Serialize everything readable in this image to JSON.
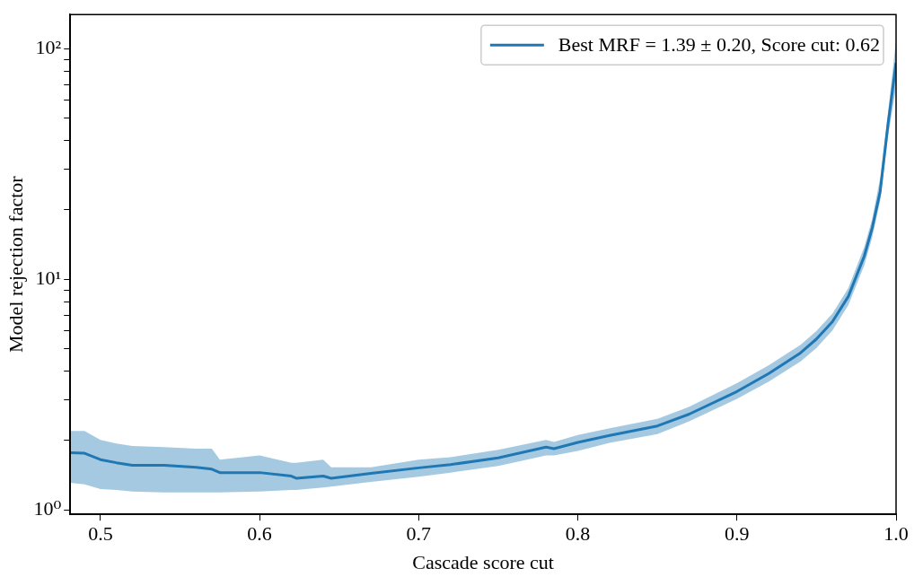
{
  "chart_data": {
    "type": "line",
    "xlabel": "Cascade score cut",
    "ylabel": "Model rejection factor",
    "log": "y",
    "grid": false,
    "legend": "top right",
    "marker": "none",
    "line_style": "solid",
    "xlim": [
      0.481,
      1.0
    ],
    "xticks": [
      0.5,
      0.6,
      0.7,
      0.8,
      0.9,
      {
        "value": 1,
        "label": "1.0"
      }
    ],
    "ylim": [
      0.955,
      141
    ],
    "yticks": [
      {
        "value": 1,
        "label": "10⁰"
      },
      {
        "value": 2,
        "label": null
      },
      {
        "value": 3,
        "label": null
      },
      {
        "value": 4,
        "label": null
      },
      {
        "value": 5,
        "label": null
      },
      {
        "value": 6,
        "label": null
      },
      {
        "value": 7,
        "label": null
      },
      {
        "value": 8,
        "label": null
      },
      {
        "value": 9,
        "label": null
      },
      {
        "value": 10,
        "label": "10¹"
      },
      {
        "value": 20,
        "label": null
      },
      {
        "value": 30,
        "label": null
      },
      {
        "value": 40,
        "label": null
      },
      {
        "value": 50,
        "label": null
      },
      {
        "value": 60,
        "label": null
      },
      {
        "value": 70,
        "label": null
      },
      {
        "value": 80,
        "label": null
      },
      {
        "value": 90,
        "label": null
      },
      {
        "value": 100,
        "label": "10²"
      }
    ],
    "x": [
      0.481,
      0.49,
      0.5,
      0.51,
      0.52,
      0.54,
      0.56,
      0.57,
      0.575,
      0.6,
      0.62,
      0.623,
      0.64,
      0.645,
      0.67,
      0.7,
      0.72,
      0.75,
      0.78,
      0.785,
      0.8,
      0.82,
      0.85,
      0.87,
      0.9,
      0.92,
      0.94,
      0.95,
      0.96,
      0.97,
      0.98,
      0.985,
      0.99,
      0.995,
      1.0
    ],
    "series": [
      {
        "name": "Best MRF = 1.39 ± 0.20, Score cut: 0.62",
        "color": "#1f77b4",
        "values": [
          1.77,
          1.76,
          1.65,
          1.6,
          1.56,
          1.56,
          1.53,
          1.5,
          1.45,
          1.45,
          1.4,
          1.37,
          1.4,
          1.37,
          1.44,
          1.52,
          1.57,
          1.68,
          1.87,
          1.84,
          1.96,
          2.1,
          2.31,
          2.6,
          3.26,
          3.9,
          4.8,
          5.51,
          6.55,
          8.43,
          12.6,
          16.7,
          24.0,
          47.5,
          87
        ],
        "upper": [
          2.2,
          2.2,
          2.01,
          1.94,
          1.89,
          1.87,
          1.84,
          1.84,
          1.65,
          1.72,
          1.6,
          1.6,
          1.65,
          1.53,
          1.53,
          1.65,
          1.69,
          1.82,
          2.01,
          1.97,
          2.11,
          2.26,
          2.48,
          2.8,
          3.54,
          4.24,
          5.2,
          5.98,
          7.1,
          9.16,
          13.8,
          18.3,
          27.5,
          53,
          110
        ],
        "lower": [
          1.31,
          1.29,
          1.23,
          1.22,
          1.2,
          1.19,
          1.19,
          1.19,
          1.19,
          1.2,
          1.22,
          1.22,
          1.25,
          1.26,
          1.32,
          1.39,
          1.45,
          1.55,
          1.72,
          1.72,
          1.8,
          1.95,
          2.13,
          2.42,
          3.03,
          3.6,
          4.4,
          5.04,
          6.0,
          7.73,
          11.5,
          15.2,
          21.9,
          42,
          68
        ]
      }
    ]
  }
}
